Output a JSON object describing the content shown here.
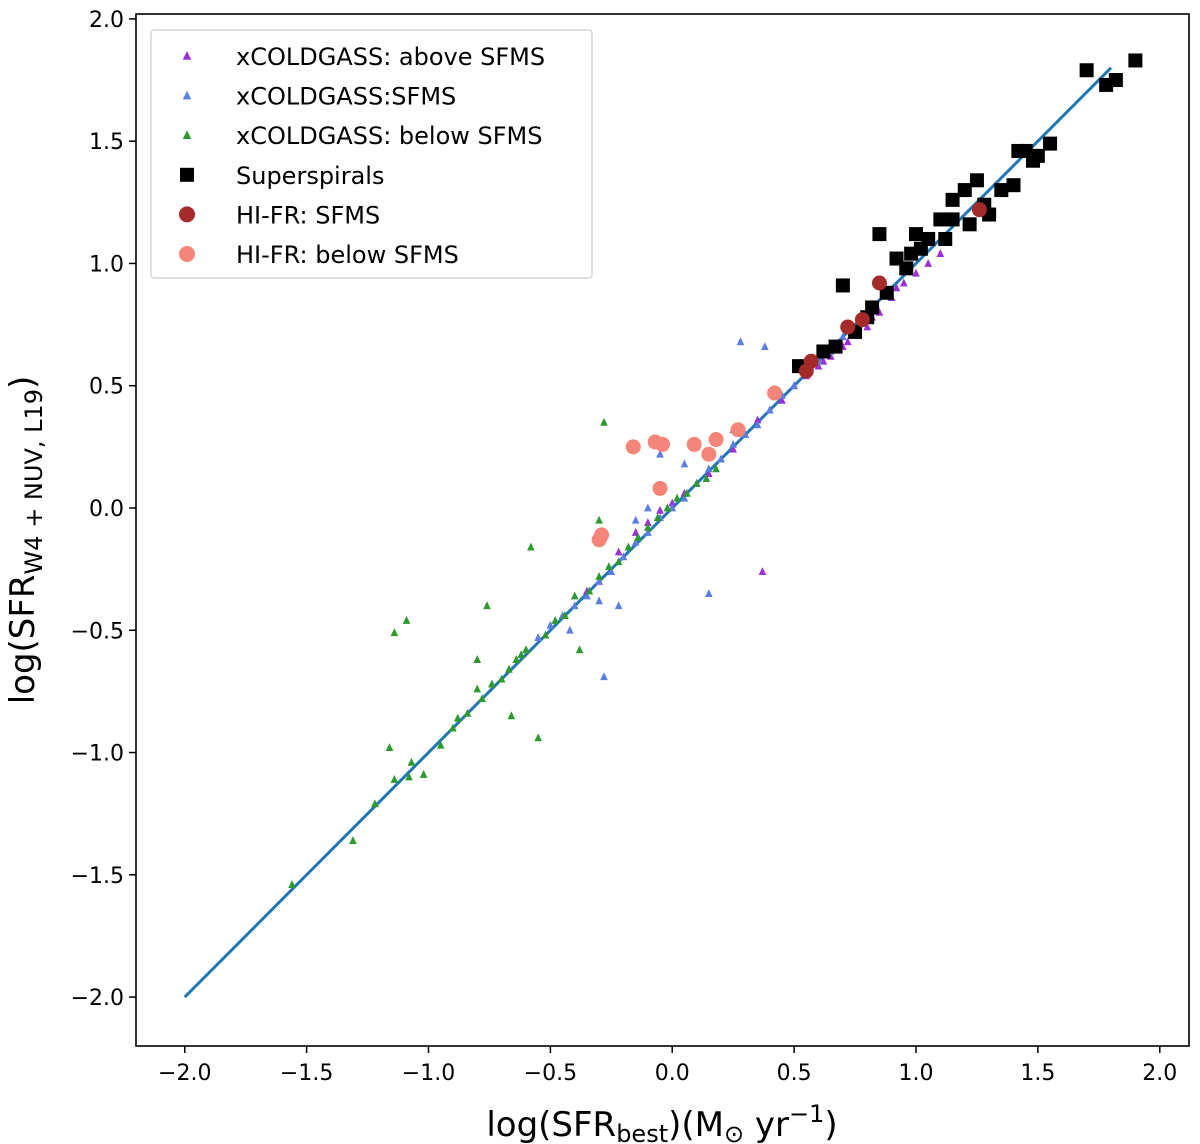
{
  "chart_data": {
    "type": "scatter",
    "xlabel": "log(SFR_best)(M_⊙ yr^−1)",
    "ylabel": "log(SFR_W4+NUV, L19)",
    "xlim": [
      -2.2,
      2.12
    ],
    "ylim": [
      -2.2,
      2.02
    ],
    "x_ticks": [
      -2.0,
      -1.5,
      -1.0,
      -0.5,
      0.0,
      0.5,
      1.0,
      1.5,
      2.0
    ],
    "y_ticks": [
      -2.0,
      -1.5,
      -1.0,
      -0.5,
      0.0,
      0.5,
      1.0,
      1.5,
      2.0
    ],
    "x_tick_labels": [
      "−2.0",
      "−1.5",
      "−1.0",
      "−0.5",
      "0.0",
      "0.5",
      "1.0",
      "1.5",
      "2.0"
    ],
    "y_tick_labels": [
      "−2.0",
      "−1.5",
      "−1.0",
      "−0.5",
      "0.0",
      "0.5",
      "1.0",
      "1.5",
      "2.0"
    ],
    "grid": false,
    "legend_position": "top-left",
    "fit_line": {
      "x": [
        -2.0,
        1.8
      ],
      "y": [
        -2.0,
        1.8
      ],
      "color": "#1f77b4"
    },
    "series": [
      {
        "name": "xCOLDGASS: above SFMS",
        "marker": "triangle",
        "color": "#9b30d9",
        "points": [
          [
            -0.35,
            -0.34
          ],
          [
            -0.3,
            -0.3
          ],
          [
            -0.22,
            -0.18
          ],
          [
            -0.15,
            -0.1
          ],
          [
            -0.1,
            -0.06
          ],
          [
            -0.05,
            -0.01
          ],
          [
            0.0,
            0.02
          ],
          [
            0.05,
            0.06
          ],
          [
            0.1,
            0.1
          ],
          [
            0.15,
            0.14
          ],
          [
            0.2,
            0.2
          ],
          [
            0.25,
            0.24
          ],
          [
            0.3,
            0.3
          ],
          [
            0.35,
            0.36
          ],
          [
            0.4,
            0.4
          ],
          [
            0.45,
            0.44
          ],
          [
            0.5,
            0.5
          ],
          [
            0.55,
            0.54
          ],
          [
            0.6,
            0.58
          ],
          [
            0.65,
            0.62
          ],
          [
            0.7,
            0.66
          ],
          [
            0.75,
            0.72
          ],
          [
            0.8,
            0.74
          ],
          [
            0.85,
            0.8
          ],
          [
            0.9,
            0.86
          ],
          [
            0.95,
            0.92
          ],
          [
            1.0,
            0.96
          ],
          [
            1.05,
            1.0
          ],
          [
            1.1,
            1.04
          ],
          [
            0.37,
            -0.26
          ],
          [
            0.62,
            0.6
          ],
          [
            0.72,
            0.68
          ],
          [
            0.82,
            0.78
          ],
          [
            0.92,
            0.9
          ]
        ]
      },
      {
        "name": "xCOLDGASS:SFMS",
        "marker": "triangle",
        "color": "#5b7fde",
        "points": [
          [
            -0.6,
            -0.58
          ],
          [
            -0.55,
            -0.53
          ],
          [
            -0.5,
            -0.48
          ],
          [
            -0.45,
            -0.44
          ],
          [
            -0.4,
            -0.4
          ],
          [
            -0.35,
            -0.36
          ],
          [
            -0.3,
            -0.3
          ],
          [
            -0.25,
            -0.26
          ],
          [
            -0.2,
            -0.2
          ],
          [
            -0.15,
            -0.14
          ],
          [
            -0.1,
            -0.1
          ],
          [
            -0.05,
            -0.04
          ],
          [
            0.0,
            0.0
          ],
          [
            0.05,
            0.04
          ],
          [
            0.1,
            0.1
          ],
          [
            0.15,
            0.16
          ],
          [
            0.2,
            0.2
          ],
          [
            0.25,
            0.26
          ],
          [
            0.3,
            0.3
          ],
          [
            0.35,
            0.34
          ],
          [
            0.4,
            0.4
          ],
          [
            0.45,
            0.46
          ],
          [
            0.5,
            0.5
          ],
          [
            0.55,
            0.56
          ],
          [
            0.6,
            0.6
          ],
          [
            0.65,
            0.64
          ],
          [
            0.7,
            0.7
          ],
          [
            -0.3,
            -0.38
          ],
          [
            -0.22,
            -0.4
          ],
          [
            -0.28,
            -0.69
          ],
          [
            0.15,
            -0.35
          ],
          [
            0.28,
            0.68
          ],
          [
            0.38,
            0.66
          ],
          [
            -0.05,
            0.22
          ],
          [
            0.05,
            0.18
          ],
          [
            -0.15,
            -0.05
          ],
          [
            0.25,
            0.32
          ],
          [
            0.1,
            0.25
          ],
          [
            -0.42,
            -0.5
          ],
          [
            -0.1,
            0.0
          ]
        ]
      },
      {
        "name": "xCOLDGASS: below SFMS",
        "marker": "triangle",
        "color": "#2e9a2e",
        "points": [
          [
            -1.56,
            -1.54
          ],
          [
            -1.31,
            -1.36
          ],
          [
            -1.22,
            -1.21
          ],
          [
            -1.16,
            -0.98
          ],
          [
            -1.14,
            -0.51
          ],
          [
            -1.14,
            -1.11
          ],
          [
            -1.09,
            -0.46
          ],
          [
            -1.08,
            -1.1
          ],
          [
            -1.07,
            -1.04
          ],
          [
            -1.02,
            -1.09
          ],
          [
            -0.95,
            -0.97
          ],
          [
            -0.9,
            -0.9
          ],
          [
            -0.88,
            -0.86
          ],
          [
            -0.84,
            -0.84
          ],
          [
            -0.8,
            -0.62
          ],
          [
            -0.78,
            -0.78
          ],
          [
            -0.74,
            -0.72
          ],
          [
            -0.7,
            -0.7
          ],
          [
            -0.67,
            -0.66
          ],
          [
            -0.64,
            -0.62
          ],
          [
            -0.6,
            -0.58
          ],
          [
            -0.58,
            -0.16
          ],
          [
            -0.55,
            -0.94
          ],
          [
            -0.52,
            -0.52
          ],
          [
            -0.48,
            -0.46
          ],
          [
            -0.44,
            -0.44
          ],
          [
            -0.4,
            -0.36
          ],
          [
            -0.38,
            -0.58
          ],
          [
            -0.34,
            -0.34
          ],
          [
            -0.3,
            -0.28
          ],
          [
            -0.28,
            0.35
          ],
          [
            -0.26,
            -0.24
          ],
          [
            -0.22,
            -0.22
          ],
          [
            -0.18,
            -0.16
          ],
          [
            -0.14,
            -0.12
          ],
          [
            -0.1,
            -0.08
          ],
          [
            -0.06,
            -0.04
          ],
          [
            -0.02,
            0.0
          ],
          [
            0.02,
            0.04
          ],
          [
            0.06,
            0.06
          ],
          [
            0.1,
            0.1
          ],
          [
            0.14,
            0.12
          ],
          [
            0.18,
            0.16
          ],
          [
            -0.76,
            -0.4
          ],
          [
            -0.8,
            -0.74
          ],
          [
            -0.66,
            -0.85
          ],
          [
            -0.62,
            -0.6
          ],
          [
            -0.3,
            -0.05
          ]
        ]
      },
      {
        "name": "Superspirals",
        "marker": "square",
        "color": "#000000",
        "points": [
          [
            0.52,
            0.58
          ],
          [
            0.62,
            0.64
          ],
          [
            0.67,
            0.66
          ],
          [
            0.7,
            0.91
          ],
          [
            0.75,
            0.72
          ],
          [
            0.8,
            0.78
          ],
          [
            0.82,
            0.82
          ],
          [
            0.85,
            1.12
          ],
          [
            0.88,
            0.88
          ],
          [
            0.92,
            1.02
          ],
          [
            0.96,
            0.98
          ],
          [
            1.0,
            1.12
          ],
          [
            1.02,
            1.06
          ],
          [
            1.05,
            1.1
          ],
          [
            1.1,
            1.18
          ],
          [
            1.12,
            1.1
          ],
          [
            1.15,
            1.26
          ],
          [
            1.2,
            1.3
          ],
          [
            1.22,
            1.16
          ],
          [
            1.25,
            1.34
          ],
          [
            1.28,
            1.24
          ],
          [
            1.3,
            1.2
          ],
          [
            1.35,
            1.3
          ],
          [
            1.4,
            1.32
          ],
          [
            1.42,
            1.46
          ],
          [
            1.45,
            1.46
          ],
          [
            1.48,
            1.42
          ],
          [
            1.5,
            1.44
          ],
          [
            1.55,
            1.49
          ],
          [
            1.7,
            1.79
          ],
          [
            1.78,
            1.73
          ],
          [
            1.82,
            1.75
          ],
          [
            1.9,
            1.83
          ],
          [
            1.15,
            1.18
          ],
          [
            0.98,
            1.04
          ]
        ]
      },
      {
        "name": "HI-FR: SFMS",
        "marker": "circle",
        "color": "#a52a2a",
        "points": [
          [
            0.55,
            0.56
          ],
          [
            0.57,
            0.6
          ],
          [
            0.72,
            0.74
          ],
          [
            0.78,
            0.77
          ],
          [
            0.85,
            0.92
          ],
          [
            1.26,
            1.22
          ]
        ]
      },
      {
        "name": "HI-FR: below SFMS",
        "marker": "circle",
        "color": "#f58578",
        "points": [
          [
            -0.3,
            -0.13
          ],
          [
            -0.29,
            -0.11
          ],
          [
            -0.16,
            0.25
          ],
          [
            -0.07,
            0.27
          ],
          [
            -0.04,
            0.26
          ],
          [
            -0.05,
            0.08
          ],
          [
            0.09,
            0.26
          ],
          [
            0.15,
            0.22
          ],
          [
            0.18,
            0.28
          ],
          [
            0.27,
            0.32
          ],
          [
            0.42,
            0.47
          ]
        ]
      }
    ]
  }
}
